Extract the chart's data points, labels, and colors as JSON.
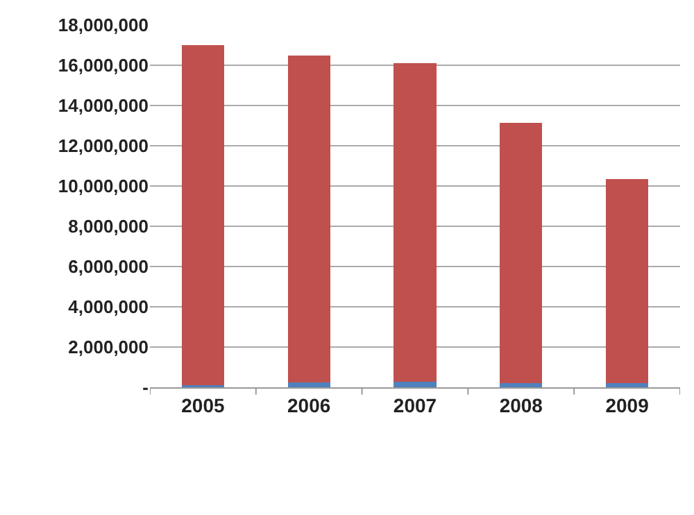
{
  "chart_data": {
    "type": "bar",
    "stacked": true,
    "categories": [
      "2005",
      "2006",
      "2007",
      "2008",
      "2009"
    ],
    "series": [
      {
        "color": "#4f81bd",
        "values": [
          100000,
          230000,
          270000,
          200000,
          200000
        ]
      },
      {
        "color": "#c0504d",
        "values": [
          16900000,
          16250000,
          15850000,
          12950000,
          10150000
        ]
      }
    ],
    "ylim": [
      0,
      18000000
    ],
    "yticks": [
      {
        "value": 0,
        "label": "-"
      },
      {
        "value": 2000000,
        "label": "2,000,000"
      },
      {
        "value": 4000000,
        "label": "4,000,000"
      },
      {
        "value": 6000000,
        "label": "6,000,000"
      },
      {
        "value": 8000000,
        "label": "8,000,000"
      },
      {
        "value": 10000000,
        "label": "10,000,000"
      },
      {
        "value": 12000000,
        "label": "12,000,000"
      },
      {
        "value": 14000000,
        "label": "14,000,000"
      },
      {
        "value": 16000000,
        "label": "16,000,000"
      },
      {
        "value": 18000000,
        "label": "18,000,000"
      }
    ],
    "grid": "y"
  }
}
